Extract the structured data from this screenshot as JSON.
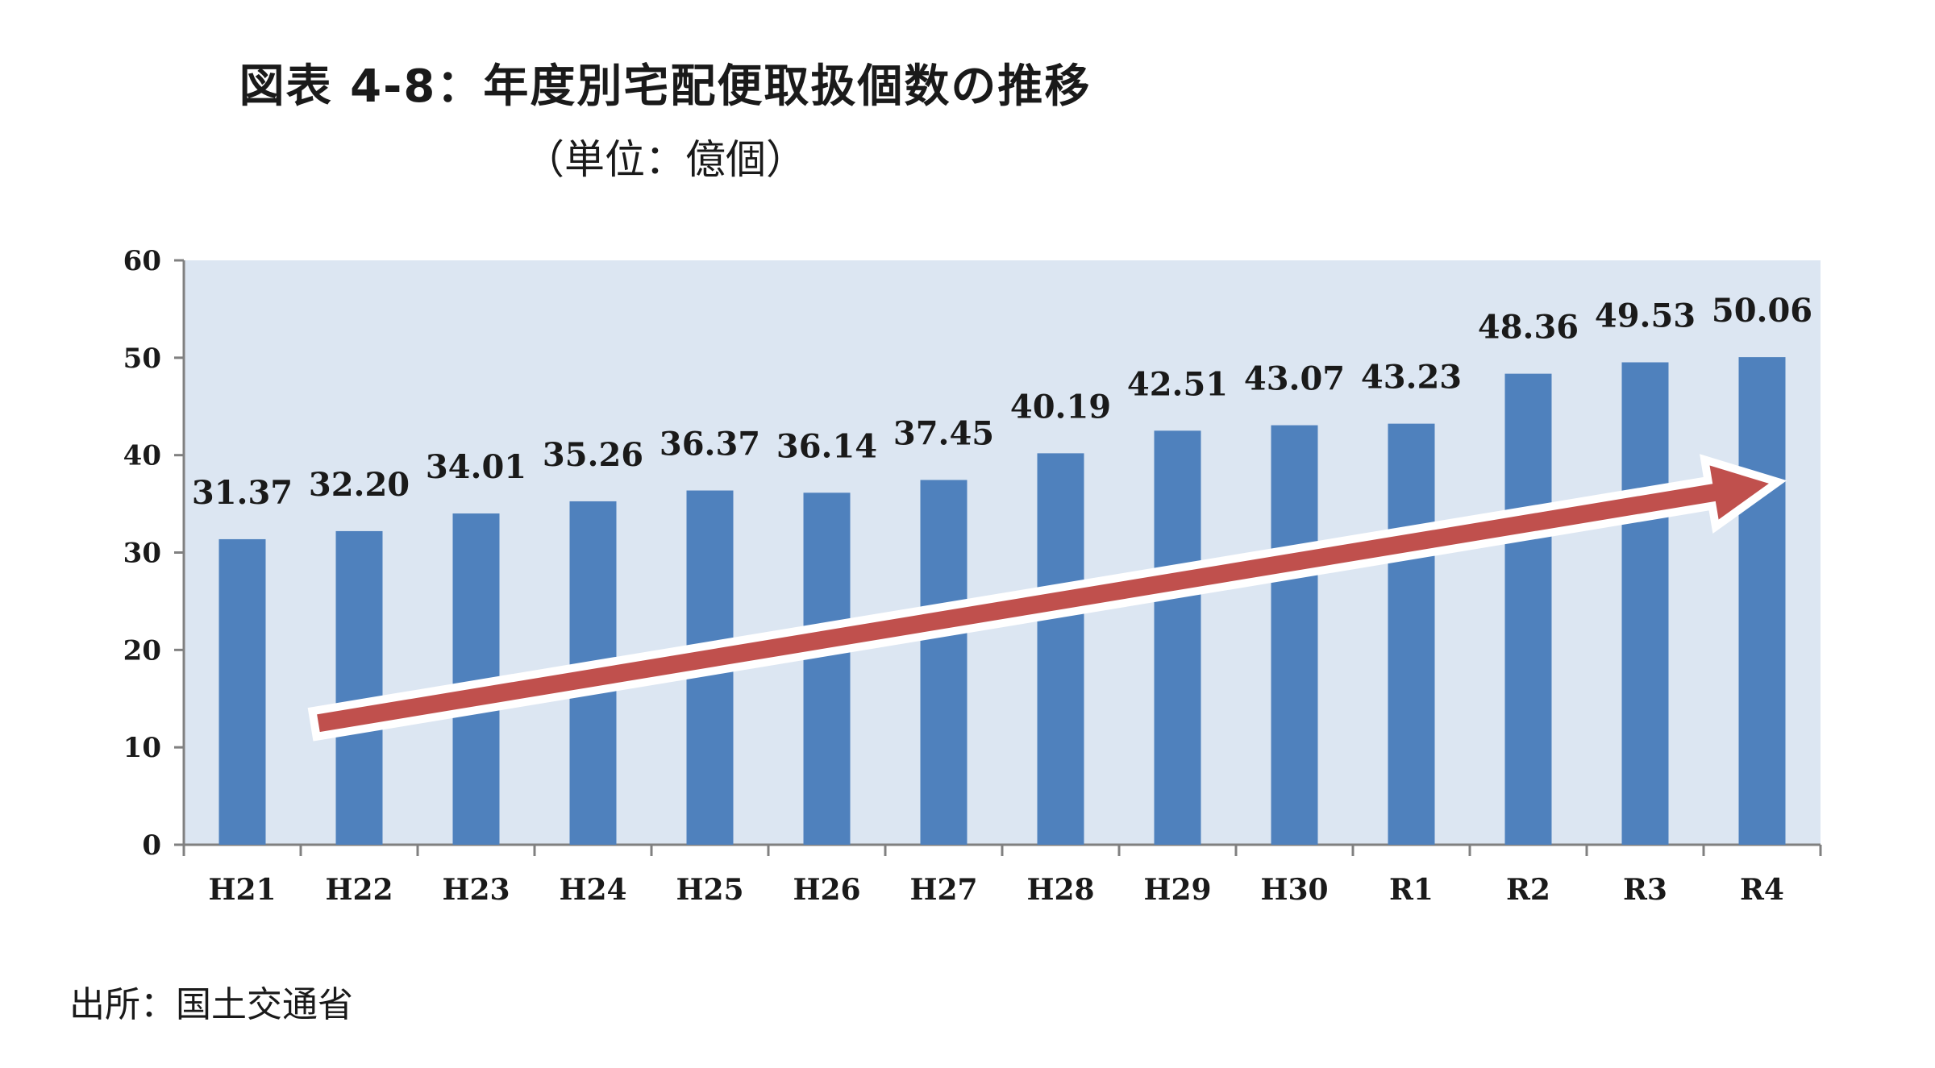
{
  "figure": {
    "title": "図表 4-8：年度別宅配便取扱個数の推移",
    "subtitle": "（単位：億個）",
    "source": "出所：国土交通省"
  },
  "colors": {
    "plot_background": "#dce6f2",
    "bar": "#4f81bd",
    "arrow_fill": "#c0504d",
    "arrow_outline": "#ffffff",
    "axis": "#808080"
  },
  "chart_data": {
    "type": "bar",
    "title": "図表 4-8：年度別宅配便取扱個数の推移",
    "subtitle": "（単位：億個）",
    "categories": [
      "H21",
      "H22",
      "H23",
      "H24",
      "H25",
      "H26",
      "H27",
      "H28",
      "H29",
      "H30",
      "R1",
      "R2",
      "R3",
      "R4"
    ],
    "values": [
      31.37,
      32.2,
      34.01,
      35.26,
      36.37,
      36.14,
      37.45,
      40.19,
      42.51,
      43.07,
      43.23,
      48.36,
      49.53,
      50.06
    ],
    "data_labels": [
      "31.37",
      "32.20",
      "34.01",
      "35.26",
      "36.37",
      "36.14",
      "37.45",
      "40.19",
      "42.51",
      "43.07",
      "43.23",
      "48.36",
      "49.53",
      "50.06"
    ],
    "yticks": [
      "0",
      "10",
      "20",
      "30",
      "40",
      "50",
      "60"
    ],
    "ylim": [
      0,
      60
    ],
    "grid": false,
    "legend": "none",
    "annotation": "upward trend arrow"
  }
}
